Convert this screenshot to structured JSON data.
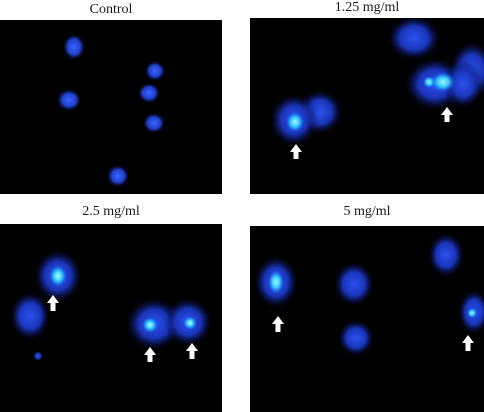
{
  "panels": [
    {
      "label": "Control"
    },
    {
      "label": "1.25 mg/ml"
    },
    {
      "label": "2.5 mg/ml"
    },
    {
      "label": "5 mg/ml"
    }
  ],
  "colors": {
    "background": "#000000",
    "nucleus": "#1a3fd6",
    "condensed_chromatin": "#2fd0ff",
    "arrow": "#ffffff"
  }
}
